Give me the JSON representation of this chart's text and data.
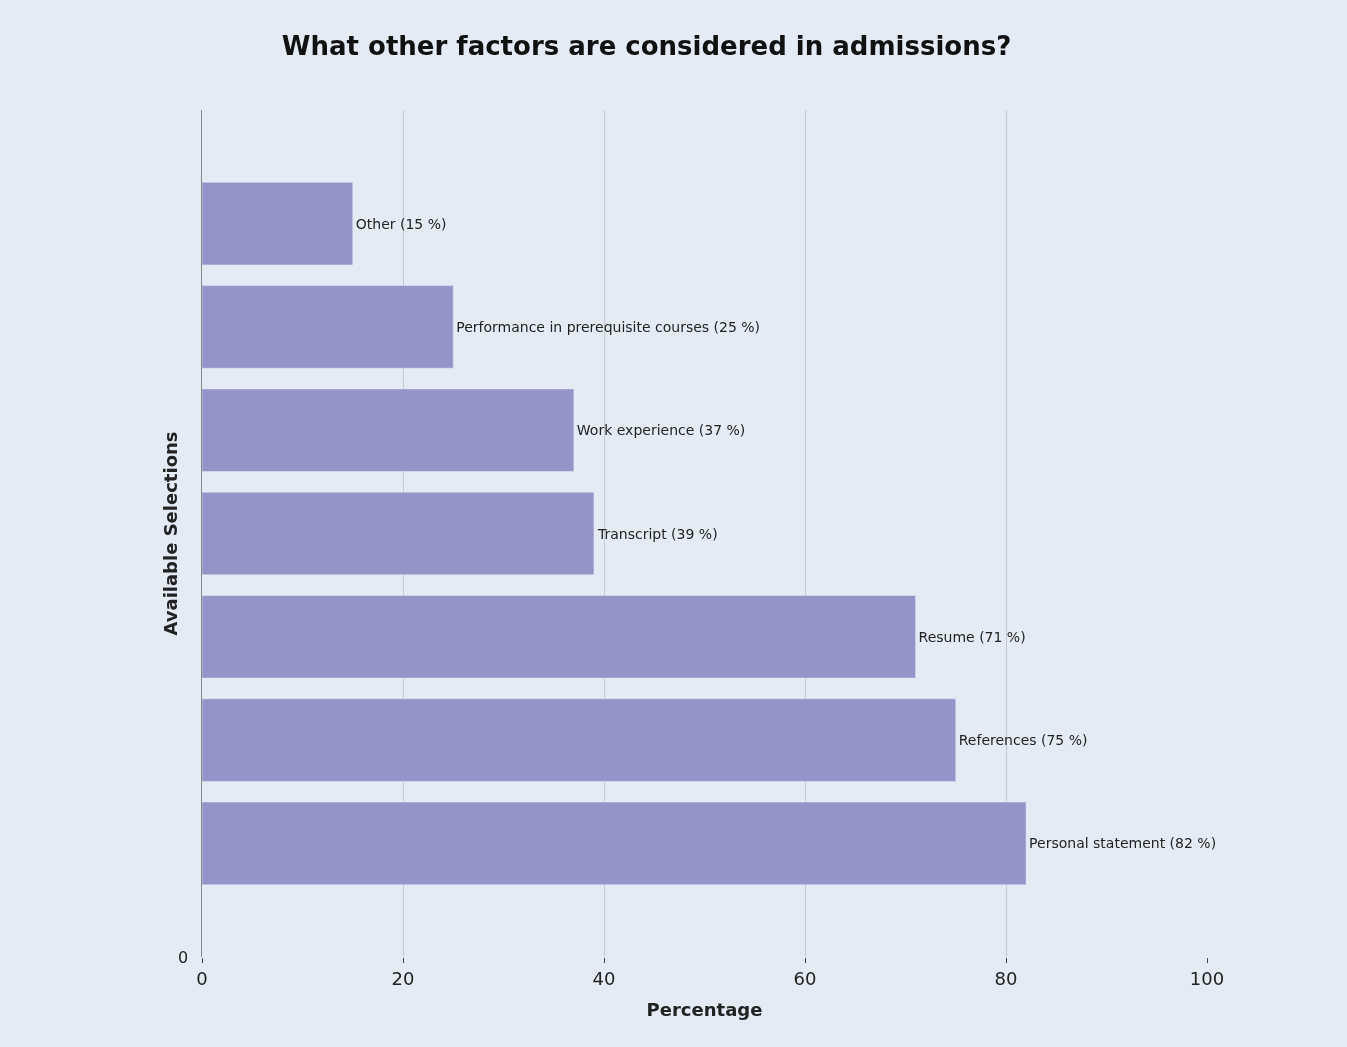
{
  "chart_data": {
    "type": "bar",
    "orientation": "horizontal",
    "title": "What other factors are considered in admissions?",
    "xlabel": "Percentage",
    "ylabel": "Available Selections",
    "categories": [
      null,
      null,
      null,
      null,
      null,
      null,
      null
    ],
    "values": [
      15,
      25,
      37,
      39,
      71,
      75,
      82
    ],
    "value_labels": [
      "Other (15 %)",
      "Performance in prerequisite courses (25 %)",
      "Work experience (37 %)",
      "Transcript (39 %)",
      "Resume (71 %)",
      "References (75 %)",
      "Personal statement (82 %)"
    ],
    "color": "#9494c8",
    "xlim": [
      0,
      100
    ],
    "xticks": [
      0,
      20,
      40,
      60,
      80,
      100
    ],
    "annotations": [
      "0"
    ],
    "grid": "x",
    "legend": false
  }
}
